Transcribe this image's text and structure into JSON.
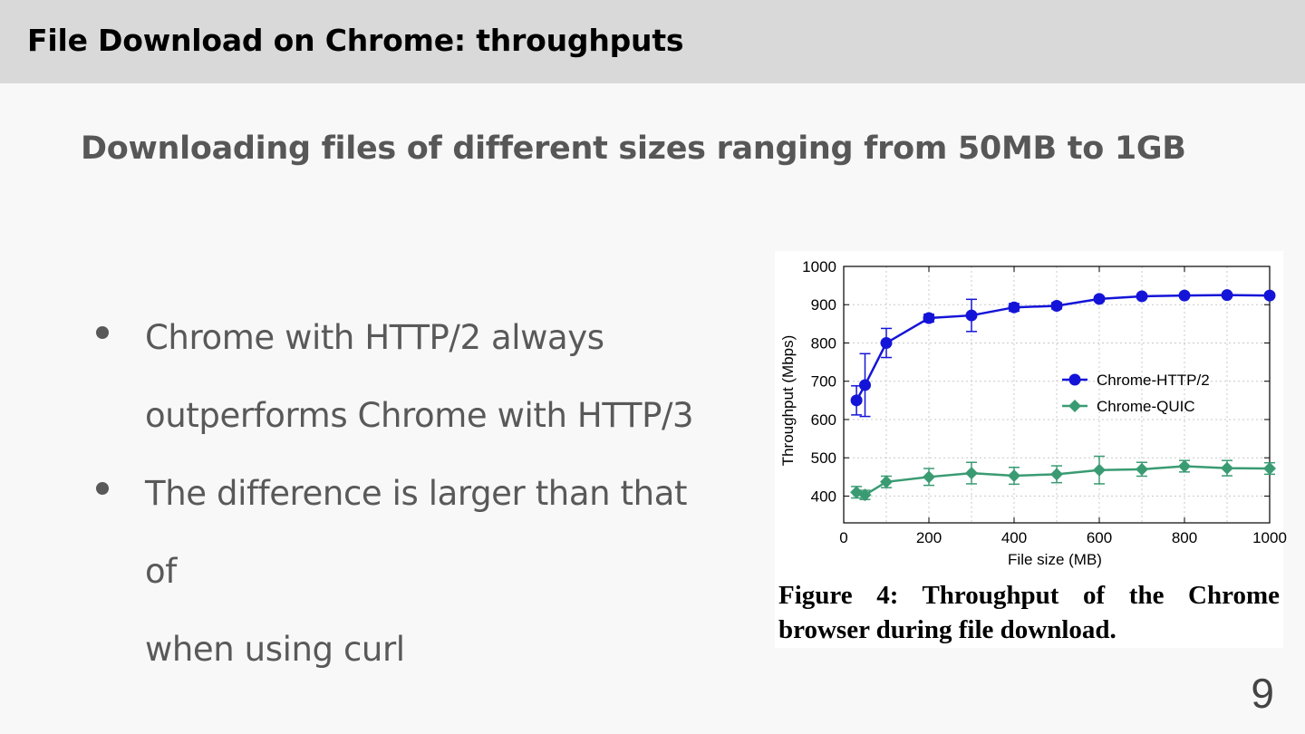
{
  "slide": {
    "title": "File Download on Chrome: throughputs",
    "subtitle": "Downloading files of different sizes ranging from 50MB to 1GB",
    "bullets": [
      {
        "line1": "Chrome with HTTP/2 always",
        "line2": "outperforms Chrome with HTTP/3"
      },
      {
        "line1": "The difference is larger than that of",
        "line2": "when using curl"
      }
    ],
    "page_number": "9"
  },
  "figure": {
    "caption_line1": "Figure 4: Throughput of the Chrome",
    "caption_line2": "browser during file download."
  },
  "chart_data": {
    "type": "line",
    "xlabel": "File size (MB)",
    "ylabel": "Throughput (Mbps)",
    "xlim": [
      0,
      1000
    ],
    "ylim": [
      330,
      1000
    ],
    "xticks": [
      0,
      200,
      400,
      600,
      800,
      1000
    ],
    "yticks": [
      400,
      500,
      600,
      700,
      800,
      900,
      1000
    ],
    "grid": true,
    "legend_position": "right-middle",
    "series": [
      {
        "name": "Chrome-HTTP/2",
        "color": "#1414d8",
        "marker": "circle",
        "x": [
          30,
          50,
          100,
          200,
          300,
          400,
          500,
          600,
          700,
          800,
          900,
          1000
        ],
        "y": [
          650,
          690,
          800,
          865,
          872,
          893,
          897,
          915,
          922,
          924,
          925,
          924
        ],
        "err": [
          38,
          82,
          38,
          10,
          42,
          10,
          8,
          6,
          4,
          4,
          4,
          4
        ]
      },
      {
        "name": "Chrome-QUIC",
        "color": "#3a9b73",
        "marker": "diamond",
        "x": [
          30,
          50,
          100,
          200,
          300,
          400,
          500,
          600,
          700,
          800,
          900,
          1000
        ],
        "y": [
          410,
          403,
          437,
          450,
          460,
          453,
          457,
          468,
          470,
          478,
          473,
          472
        ],
        "err": [
          15,
          12,
          15,
          22,
          28,
          22,
          22,
          36,
          18,
          15,
          20,
          15
        ]
      }
    ]
  }
}
